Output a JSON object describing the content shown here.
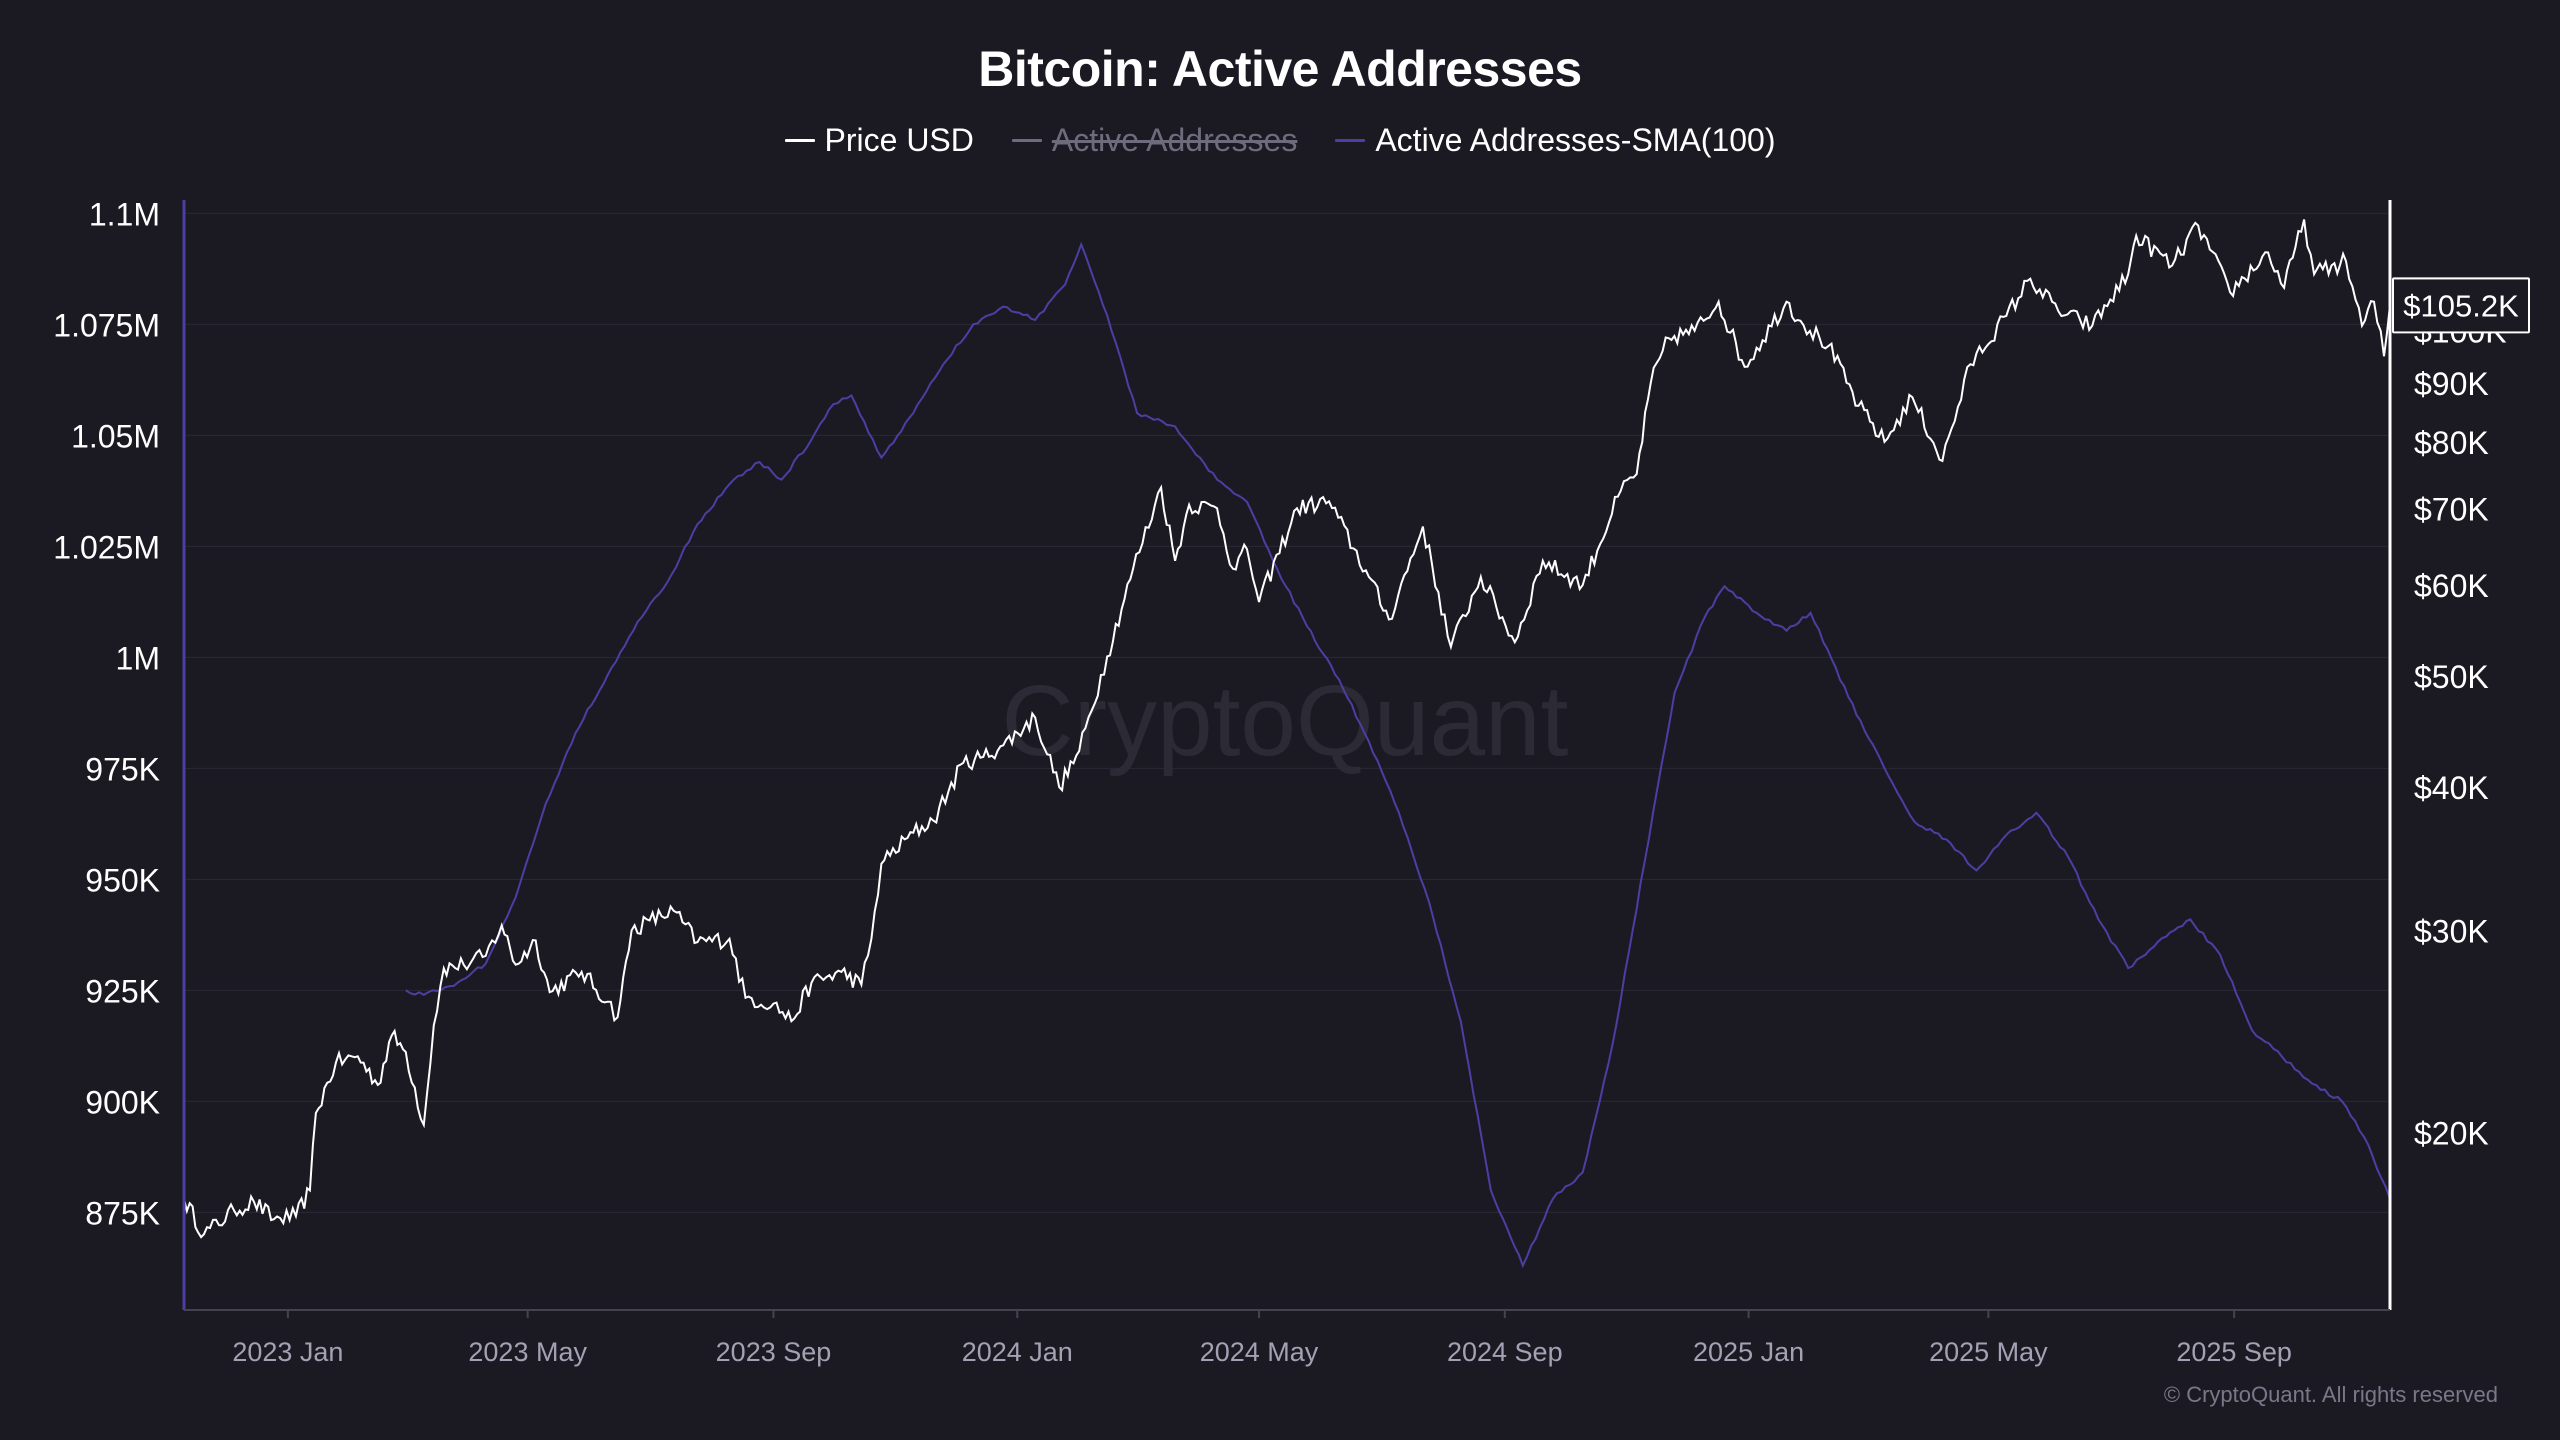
{
  "chart_data": {
    "type": "line",
    "title": "Bitcoin: Active Addresses",
    "legend_placement": "top-center",
    "grid": true,
    "watermark": "CryptoQuant",
    "copyright": "© CryptoQuant. All rights reserved",
    "x_range": [
      "2022-11-10",
      "2025-11-18"
    ],
    "x_ticks": [
      {
        "date": "2023-01-01",
        "label": "2023 Jan"
      },
      {
        "date": "2023-05-01",
        "label": "2023 May"
      },
      {
        "date": "2023-09-01",
        "label": "2023 Sep"
      },
      {
        "date": "2024-01-01",
        "label": "2024 Jan"
      },
      {
        "date": "2024-05-01",
        "label": "2024 May"
      },
      {
        "date": "2024-09-01",
        "label": "2024 Sep"
      },
      {
        "date": "2025-01-01",
        "label": "2025 Jan"
      },
      {
        "date": "2025-05-01",
        "label": "2025 May"
      },
      {
        "date": "2025-09-01",
        "label": "2025 Sep"
      }
    ],
    "left_axis": {
      "scale": "linear",
      "ylim": [
        853000,
        1103000
      ],
      "ticks": [
        {
          "value": 1100000,
          "label": "1.1M"
        },
        {
          "value": 1075000,
          "label": "1.075M"
        },
        {
          "value": 1050000,
          "label": "1.05M"
        },
        {
          "value": 1025000,
          "label": "1.025M"
        },
        {
          "value": 1000000,
          "label": "1M"
        },
        {
          "value": 975000,
          "label": "975K"
        },
        {
          "value": 950000,
          "label": "950K"
        },
        {
          "value": 925000,
          "label": "925K"
        },
        {
          "value": 900000,
          "label": "900K"
        },
        {
          "value": 875000,
          "label": "875K"
        }
      ]
    },
    "right_axis": {
      "scale": "log",
      "ylim": [
        14000,
        130000
      ],
      "ticks": [
        {
          "value": 100000,
          "label": "$100K"
        },
        {
          "value": 90000,
          "label": "$90K"
        },
        {
          "value": 80000,
          "label": "$80K"
        },
        {
          "value": 70000,
          "label": "$70K"
        },
        {
          "value": 60000,
          "label": "$60K"
        },
        {
          "value": 50000,
          "label": "$50K"
        },
        {
          "value": 40000,
          "label": "$40K"
        },
        {
          "value": 30000,
          "label": "$30K"
        },
        {
          "value": 20000,
          "label": "$20K"
        }
      ],
      "last_value_label": "$105.2K",
      "last_value": 105200
    },
    "series": [
      {
        "name": "Price USD",
        "axis": "right",
        "color": "#ffffff",
        "visible": true,
        "points": [
          [
            "2022-11-10",
            17500
          ],
          [
            "2022-11-20",
            16300
          ],
          [
            "2022-12-05",
            17100
          ],
          [
            "2022-12-15",
            17400
          ],
          [
            "2022-12-25",
            16800
          ],
          [
            "2023-01-05",
            16900
          ],
          [
            "2023-01-12",
            17800
          ],
          [
            "2023-01-15",
            20800
          ],
          [
            "2023-01-25",
            23000
          ],
          [
            "2023-02-05",
            23300
          ],
          [
            "2023-02-15",
            22000
          ],
          [
            "2023-02-22",
            24300
          ],
          [
            "2023-03-01",
            23500
          ],
          [
            "2023-03-10",
            20300
          ],
          [
            "2023-03-15",
            24800
          ],
          [
            "2023-03-20",
            27800
          ],
          [
            "2023-03-30",
            28000
          ],
          [
            "2023-04-10",
            28500
          ],
          [
            "2023-04-18",
            30300
          ],
          [
            "2023-04-25",
            28000
          ],
          [
            "2023-05-05",
            29400
          ],
          [
            "2023-05-12",
            26500
          ],
          [
            "2023-05-28",
            27600
          ],
          [
            "2023-06-10",
            26000
          ],
          [
            "2023-06-15",
            25200
          ],
          [
            "2023-06-22",
            30000
          ],
          [
            "2023-07-01",
            30600
          ],
          [
            "2023-07-13",
            31200
          ],
          [
            "2023-07-25",
            29300
          ],
          [
            "2023-08-10",
            29500
          ],
          [
            "2023-08-18",
            26200
          ],
          [
            "2023-09-01",
            25900
          ],
          [
            "2023-09-10",
            25000
          ],
          [
            "2023-09-20",
            27000
          ],
          [
            "2023-10-05",
            27600
          ],
          [
            "2023-10-15",
            26900
          ],
          [
            "2023-10-20",
            29500
          ],
          [
            "2023-10-25",
            34300
          ],
          [
            "2023-11-10",
            36500
          ],
          [
            "2023-11-20",
            37400
          ],
          [
            "2023-12-05",
            42000
          ],
          [
            "2023-12-15",
            42500
          ],
          [
            "2023-12-25",
            43500
          ],
          [
            "2024-01-10",
            46000
          ],
          [
            "2024-01-22",
            40000
          ],
          [
            "2024-02-01",
            43000
          ],
          [
            "2024-02-15",
            52000
          ],
          [
            "2024-02-28",
            62000
          ],
          [
            "2024-03-13",
            73000
          ],
          [
            "2024-03-20",
            63000
          ],
          [
            "2024-03-27",
            70500
          ],
          [
            "2024-04-10",
            70000
          ],
          [
            "2024-04-18",
            62000
          ],
          [
            "2024-04-25",
            64500
          ],
          [
            "2024-05-01",
            58000
          ],
          [
            "2024-05-20",
            70000
          ],
          [
            "2024-06-05",
            71000
          ],
          [
            "2024-06-25",
            61000
          ],
          [
            "2024-07-05",
            56000
          ],
          [
            "2024-07-22",
            67500
          ],
          [
            "2024-08-05",
            53000
          ],
          [
            "2024-08-20",
            61000
          ],
          [
            "2024-09-06",
            53500
          ],
          [
            "2024-09-20",
            63000
          ],
          [
            "2024-10-10",
            60000
          ],
          [
            "2024-10-29",
            72500
          ],
          [
            "2024-11-06",
            75000
          ],
          [
            "2024-11-13",
            90000
          ],
          [
            "2024-11-22",
            98500
          ],
          [
            "2024-12-05",
            100000
          ],
          [
            "2024-12-17",
            106000
          ],
          [
            "2024-12-30",
            93000
          ],
          [
            "2025-01-20",
            106000
          ],
          [
            "2025-01-27",
            102000
          ],
          [
            "2025-02-10",
            97000
          ],
          [
            "2025-02-25",
            86000
          ],
          [
            "2025-03-10",
            80000
          ],
          [
            "2025-03-24",
            87500
          ],
          [
            "2025-04-08",
            77000
          ],
          [
            "2025-04-22",
            93500
          ],
          [
            "2025-05-10",
            103000
          ],
          [
            "2025-05-22",
            111000
          ],
          [
            "2025-06-05",
            104000
          ],
          [
            "2025-06-22",
            101000
          ],
          [
            "2025-07-10",
            112000
          ],
          [
            "2025-07-14",
            121000
          ],
          [
            "2025-08-01",
            114000
          ],
          [
            "2025-08-14",
            123500
          ],
          [
            "2025-08-30",
            108000
          ],
          [
            "2025-09-18",
            117000
          ],
          [
            "2025-09-26",
            109000
          ],
          [
            "2025-10-06",
            125000
          ],
          [
            "2025-10-11",
            112000
          ],
          [
            "2025-10-27",
            115000
          ],
          [
            "2025-11-04",
            101000
          ],
          [
            "2025-11-10",
            106000
          ],
          [
            "2025-11-15",
            95000
          ],
          [
            "2025-11-18",
            105200
          ]
        ]
      },
      {
        "name": "Active Addresses",
        "axis": "left",
        "visible": false
      },
      {
        "name": "Active Addresses-SMA(100)",
        "axis": "left",
        "color": "#4b3fa3",
        "visible": true,
        "points": [
          [
            "2023-03-01",
            925000
          ],
          [
            "2023-03-10",
            924000
          ],
          [
            "2023-03-25",
            926000
          ],
          [
            "2023-04-10",
            931000
          ],
          [
            "2023-04-25",
            946000
          ],
          [
            "2023-05-10",
            967000
          ],
          [
            "2023-05-25",
            983000
          ],
          [
            "2023-06-10",
            996000
          ],
          [
            "2023-06-25",
            1008000
          ],
          [
            "2023-07-10",
            1017000
          ],
          [
            "2023-07-25",
            1030000
          ],
          [
            "2023-08-10",
            1039000
          ],
          [
            "2023-08-25",
            1044000
          ],
          [
            "2023-09-05",
            1040000
          ],
          [
            "2023-09-20",
            1049000
          ],
          [
            "2023-10-01",
            1057000
          ],
          [
            "2023-10-10",
            1059000
          ],
          [
            "2023-10-25",
            1045000
          ],
          [
            "2023-11-10",
            1055000
          ],
          [
            "2023-11-25",
            1066000
          ],
          [
            "2023-12-10",
            1075000
          ],
          [
            "2023-12-25",
            1079000
          ],
          [
            "2024-01-10",
            1076000
          ],
          [
            "2024-01-25",
            1084000
          ],
          [
            "2024-02-02",
            1093000
          ],
          [
            "2024-02-15",
            1077000
          ],
          [
            "2024-03-01",
            1055000
          ],
          [
            "2024-03-20",
            1052000
          ],
          [
            "2024-04-10",
            1040000
          ],
          [
            "2024-04-25",
            1035000
          ],
          [
            "2024-05-10",
            1020000
          ],
          [
            "2024-05-25",
            1007000
          ],
          [
            "2024-06-10",
            995000
          ],
          [
            "2024-06-25",
            981000
          ],
          [
            "2024-07-10",
            965000
          ],
          [
            "2024-07-25",
            945000
          ],
          [
            "2024-08-10",
            918000
          ],
          [
            "2024-08-25",
            880000
          ],
          [
            "2024-09-10",
            863000
          ],
          [
            "2024-09-25",
            878000
          ],
          [
            "2024-10-10",
            884000
          ],
          [
            "2024-10-25",
            913000
          ],
          [
            "2024-11-10",
            954000
          ],
          [
            "2024-11-25",
            992000
          ],
          [
            "2024-12-10",
            1009000
          ],
          [
            "2024-12-20",
            1016000
          ],
          [
            "2025-01-05",
            1010000
          ],
          [
            "2025-01-20",
            1006000
          ],
          [
            "2025-02-01",
            1010000
          ],
          [
            "2025-02-20",
            991000
          ],
          [
            "2025-03-10",
            975000
          ],
          [
            "2025-03-25",
            963000
          ],
          [
            "2025-04-10",
            959000
          ],
          [
            "2025-04-25",
            952000
          ],
          [
            "2025-05-10",
            960000
          ],
          [
            "2025-05-25",
            965000
          ],
          [
            "2025-06-10",
            955000
          ],
          [
            "2025-06-25",
            941000
          ],
          [
            "2025-07-10",
            930000
          ],
          [
            "2025-07-25",
            936000
          ],
          [
            "2025-08-10",
            941000
          ],
          [
            "2025-08-25",
            933000
          ],
          [
            "2025-09-10",
            916000
          ],
          [
            "2025-09-25",
            910000
          ],
          [
            "2025-10-10",
            904000
          ],
          [
            "2025-10-25",
            900000
          ],
          [
            "2025-11-05",
            892000
          ],
          [
            "2025-11-18",
            878000
          ]
        ]
      }
    ]
  }
}
